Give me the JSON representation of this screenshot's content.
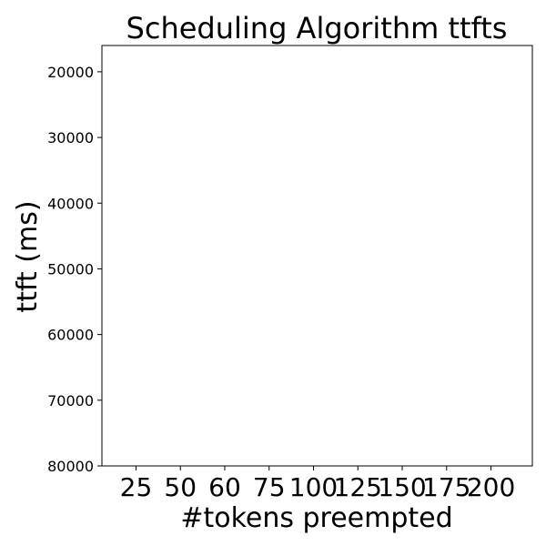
{
  "chart_data": {
    "type": "bar",
    "title": "Scheduling Algorithm ttfts",
    "xlabel": "#tokens preempted",
    "ylabel": "ttft (ms)",
    "categories": [
      "25",
      "50",
      "60",
      "75",
      "100",
      "125",
      "150",
      "175",
      "200"
    ],
    "series": [],
    "yticks": [
      20000,
      30000,
      40000,
      50000,
      60000,
      70000,
      80000
    ],
    "ylim": [
      16000,
      80000
    ],
    "y_inverted": true,
    "grid": false
  }
}
